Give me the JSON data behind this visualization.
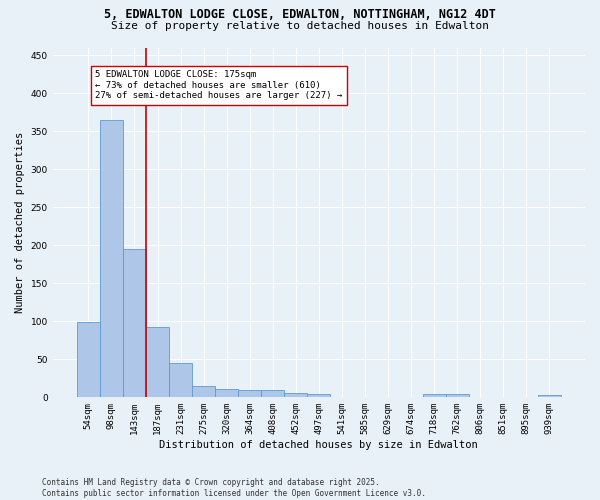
{
  "title_line1": "5, EDWALTON LODGE CLOSE, EDWALTON, NOTTINGHAM, NG12 4DT",
  "title_line2": "Size of property relative to detached houses in Edwalton",
  "xlabel": "Distribution of detached houses by size in Edwalton",
  "ylabel": "Number of detached properties",
  "bar_labels": [
    "54sqm",
    "98sqm",
    "143sqm",
    "187sqm",
    "231sqm",
    "275sqm",
    "320sqm",
    "364sqm",
    "408sqm",
    "452sqm",
    "497sqm",
    "541sqm",
    "585sqm",
    "629sqm",
    "674sqm",
    "718sqm",
    "762sqm",
    "806sqm",
    "851sqm",
    "895sqm",
    "939sqm"
  ],
  "bar_values": [
    99,
    365,
    195,
    93,
    45,
    15,
    11,
    9,
    9,
    6,
    5,
    0,
    0,
    0,
    0,
    4,
    4,
    0,
    0,
    0,
    3
  ],
  "bar_color": "#aec6e8",
  "bar_edge_color": "#5b9bd5",
  "annotation_text": "5 EDWALTON LODGE CLOSE: 175sqm\n← 73% of detached houses are smaller (610)\n27% of semi-detached houses are larger (227) →",
  "vline_x": 2.5,
  "vline_color": "#cc0000",
  "annotation_box_color": "#ffffff",
  "annotation_box_edge": "#cc0000",
  "ylim": [
    0,
    460
  ],
  "yticks": [
    0,
    50,
    100,
    150,
    200,
    250,
    300,
    350,
    400,
    450
  ],
  "footnote": "Contains HM Land Registry data © Crown copyright and database right 2025.\nContains public sector information licensed under the Open Government Licence v3.0.",
  "bg_color": "#e8f0f8",
  "plot_bg_color": "#e8f0f8",
  "grid_color": "#ffffff",
  "title_fontsize": 8.5,
  "subtitle_fontsize": 8,
  "axis_label_fontsize": 7.5,
  "tick_fontsize": 6.5,
  "annotation_fontsize": 6.5,
  "footnote_fontsize": 5.5
}
